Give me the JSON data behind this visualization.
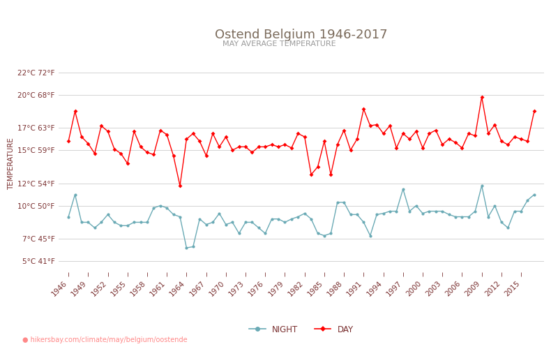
{
  "title": "Ostend Belgium 1946-2017",
  "subtitle": "MAY AVERAGE TEMPERATURE",
  "ylabel": "TEMPERATURE",
  "xlabel_url": "hikersbay.com/climate/may/belgium/oostende",
  "years": [
    1946,
    1947,
    1948,
    1949,
    1950,
    1951,
    1952,
    1953,
    1954,
    1955,
    1956,
    1957,
    1958,
    1959,
    1960,
    1961,
    1962,
    1963,
    1964,
    1965,
    1966,
    1967,
    1968,
    1969,
    1970,
    1971,
    1972,
    1973,
    1974,
    1975,
    1976,
    1977,
    1978,
    1979,
    1980,
    1981,
    1982,
    1983,
    1984,
    1985,
    1986,
    1987,
    1988,
    1989,
    1990,
    1991,
    1992,
    1993,
    1994,
    1995,
    1996,
    1997,
    1998,
    1999,
    2000,
    2001,
    2002,
    2003,
    2004,
    2005,
    2006,
    2007,
    2008,
    2009,
    2010,
    2011,
    2012,
    2013,
    2014,
    2015,
    2016,
    2017
  ],
  "day_temps": [
    15.8,
    18.5,
    16.2,
    15.6,
    14.7,
    17.2,
    16.7,
    15.1,
    14.7,
    13.8,
    16.7,
    15.3,
    14.8,
    14.6,
    16.8,
    16.4,
    14.5,
    11.8,
    16.0,
    16.5,
    15.8,
    14.5,
    16.5,
    15.3,
    16.2,
    15.0,
    15.3,
    15.3,
    14.8,
    15.3,
    15.3,
    15.5,
    15.3,
    15.5,
    15.2,
    16.5,
    16.2,
    12.8,
    13.5,
    15.8,
    12.8,
    15.5,
    16.8,
    15.0,
    16.0,
    18.7,
    17.2,
    17.3,
    16.5,
    17.2,
    15.2,
    16.5,
    16.0,
    16.7,
    15.2,
    16.5,
    16.8,
    15.5,
    16.0,
    15.7,
    15.2,
    16.5,
    16.3,
    19.8,
    16.5,
    17.3,
    15.8,
    15.5,
    16.2,
    16.0,
    15.8,
    18.5
  ],
  "night_temps": [
    9.0,
    11.0,
    8.5,
    8.5,
    8.0,
    8.5,
    9.2,
    8.5,
    8.2,
    8.2,
    8.5,
    8.5,
    8.5,
    9.8,
    10.0,
    9.8,
    9.2,
    9.0,
    6.2,
    6.3,
    8.8,
    8.3,
    8.5,
    9.3,
    8.3,
    8.5,
    7.5,
    8.5,
    8.5,
    8.0,
    7.5,
    8.8,
    8.8,
    8.5,
    8.8,
    9.0,
    9.3,
    8.8,
    7.5,
    7.3,
    7.5,
    10.3,
    10.3,
    9.2,
    9.2,
    8.5,
    7.3,
    9.2,
    9.3,
    9.5,
    9.5,
    11.5,
    9.5,
    10.0,
    9.3,
    9.5,
    9.5,
    9.5,
    9.2,
    9.0,
    9.0,
    9.0,
    9.5,
    11.8,
    9.0,
    10.0,
    8.5,
    8.0,
    9.5,
    9.5,
    10.5,
    11.0
  ],
  "day_color": "#ff0000",
  "night_color": "#6aaab5",
  "background_color": "#ffffff",
  "grid_color": "#cccccc",
  "title_color": "#7a6a5a",
  "subtitle_color": "#999999",
  "label_color": "#7a3030",
  "url_color": "#ff8888",
  "yticks_c": [
    5,
    7,
    10,
    12,
    15,
    17,
    20,
    22
  ],
  "yticks_f": [
    41,
    45,
    50,
    54,
    59,
    63,
    68,
    72
  ],
  "ylim": [
    4,
    23.5
  ],
  "xtick_years": [
    1946,
    1949,
    1952,
    1955,
    1958,
    1961,
    1964,
    1967,
    1970,
    1973,
    1976,
    1979,
    1982,
    1985,
    1988,
    1991,
    1994,
    1997,
    2000,
    2003,
    2006,
    2009,
    2012,
    2015
  ]
}
